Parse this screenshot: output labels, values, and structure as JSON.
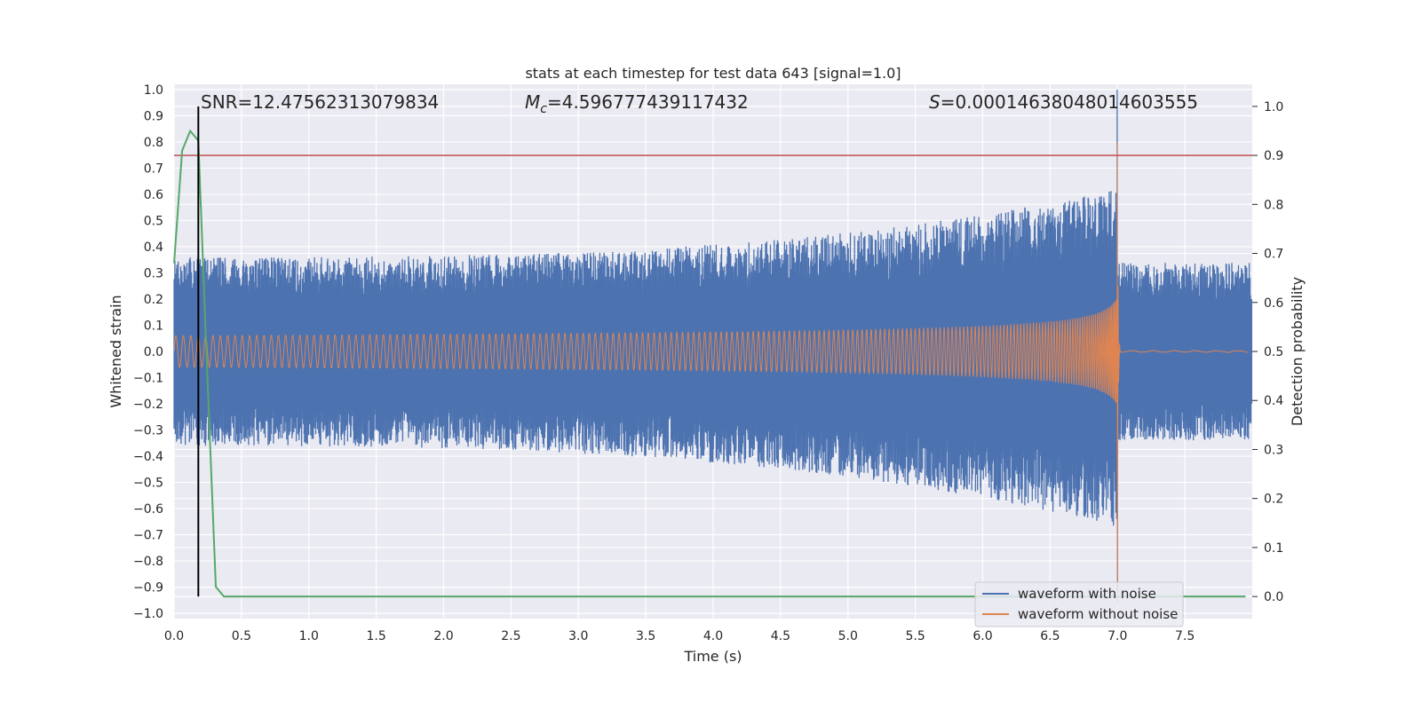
{
  "chart_data": {
    "type": "line",
    "title": "stats at each timestep for test data 643 [signal=1.0]",
    "xlabel": "Time (s)",
    "ylabel": "Whitened strain",
    "y2label": "Detection probability",
    "xlim": [
      0.0,
      8.0
    ],
    "ylim": [
      -1.02,
      1.02
    ],
    "y2lim": [
      -0.045,
      1.045
    ],
    "xticks": [
      "0.0",
      "0.5",
      "1.0",
      "1.5",
      "2.0",
      "2.5",
      "3.0",
      "3.5",
      "4.0",
      "4.5",
      "5.0",
      "5.5",
      "6.0",
      "6.5",
      "7.0",
      "7.5"
    ],
    "yticks": [
      "1.0",
      "0.9",
      "0.8",
      "0.7",
      "0.6",
      "0.5",
      "0.4",
      "0.3",
      "0.2",
      "0.1",
      "0.0",
      "−0.1",
      "−0.2",
      "−0.3",
      "−0.4",
      "−0.5",
      "−0.6",
      "−0.7",
      "−0.8",
      "−0.9",
      "−1.0"
    ],
    "y2ticks": [
      "1.0",
      "0.9",
      "0.8",
      "0.7",
      "0.6",
      "0.5",
      "0.4",
      "0.3",
      "0.2",
      "0.1",
      "0.0"
    ],
    "grid": true,
    "legend_position": "lower right",
    "annotations": {
      "snr": "SNR=12.47562313079834",
      "mc_symbol": "M",
      "mc_sub": "c",
      "mc_value": "=4.596777439117432",
      "s_symbol": "S",
      "s_value": "=0.00014638048014603555"
    },
    "series": [
      {
        "name": "waveform with noise",
        "axis": "left",
        "color": "#4c72b0",
        "noise_envelope": {
          "core_abs": 0.22,
          "typical_peak_start": 0.36,
          "typical_peak_merger": 0.62,
          "peak_at_merger": 1.0
        }
      },
      {
        "name": "waveform without noise",
        "axis": "left",
        "color": "#dd8452",
        "chirp": {
          "start_amplitude": 0.06,
          "merger_time": 7.0,
          "merger_peak": 0.8,
          "merger_trough": -0.96
        }
      },
      {
        "axis": "right",
        "color": "#55a868",
        "x": [
          0.0,
          0.06,
          0.12,
          0.18,
          0.24,
          0.31,
          0.37,
          0.5,
          7.95
        ],
        "values": [
          0.68,
          0.91,
          0.95,
          0.93,
          0.5,
          0.02,
          0.0,
          0.0,
          0.0
        ]
      }
    ],
    "threshold_line": {
      "axis": "right",
      "value": 0.9,
      "color": "#c44e52"
    },
    "vertical_line": {
      "x": 0.18,
      "color": "#000000"
    }
  }
}
